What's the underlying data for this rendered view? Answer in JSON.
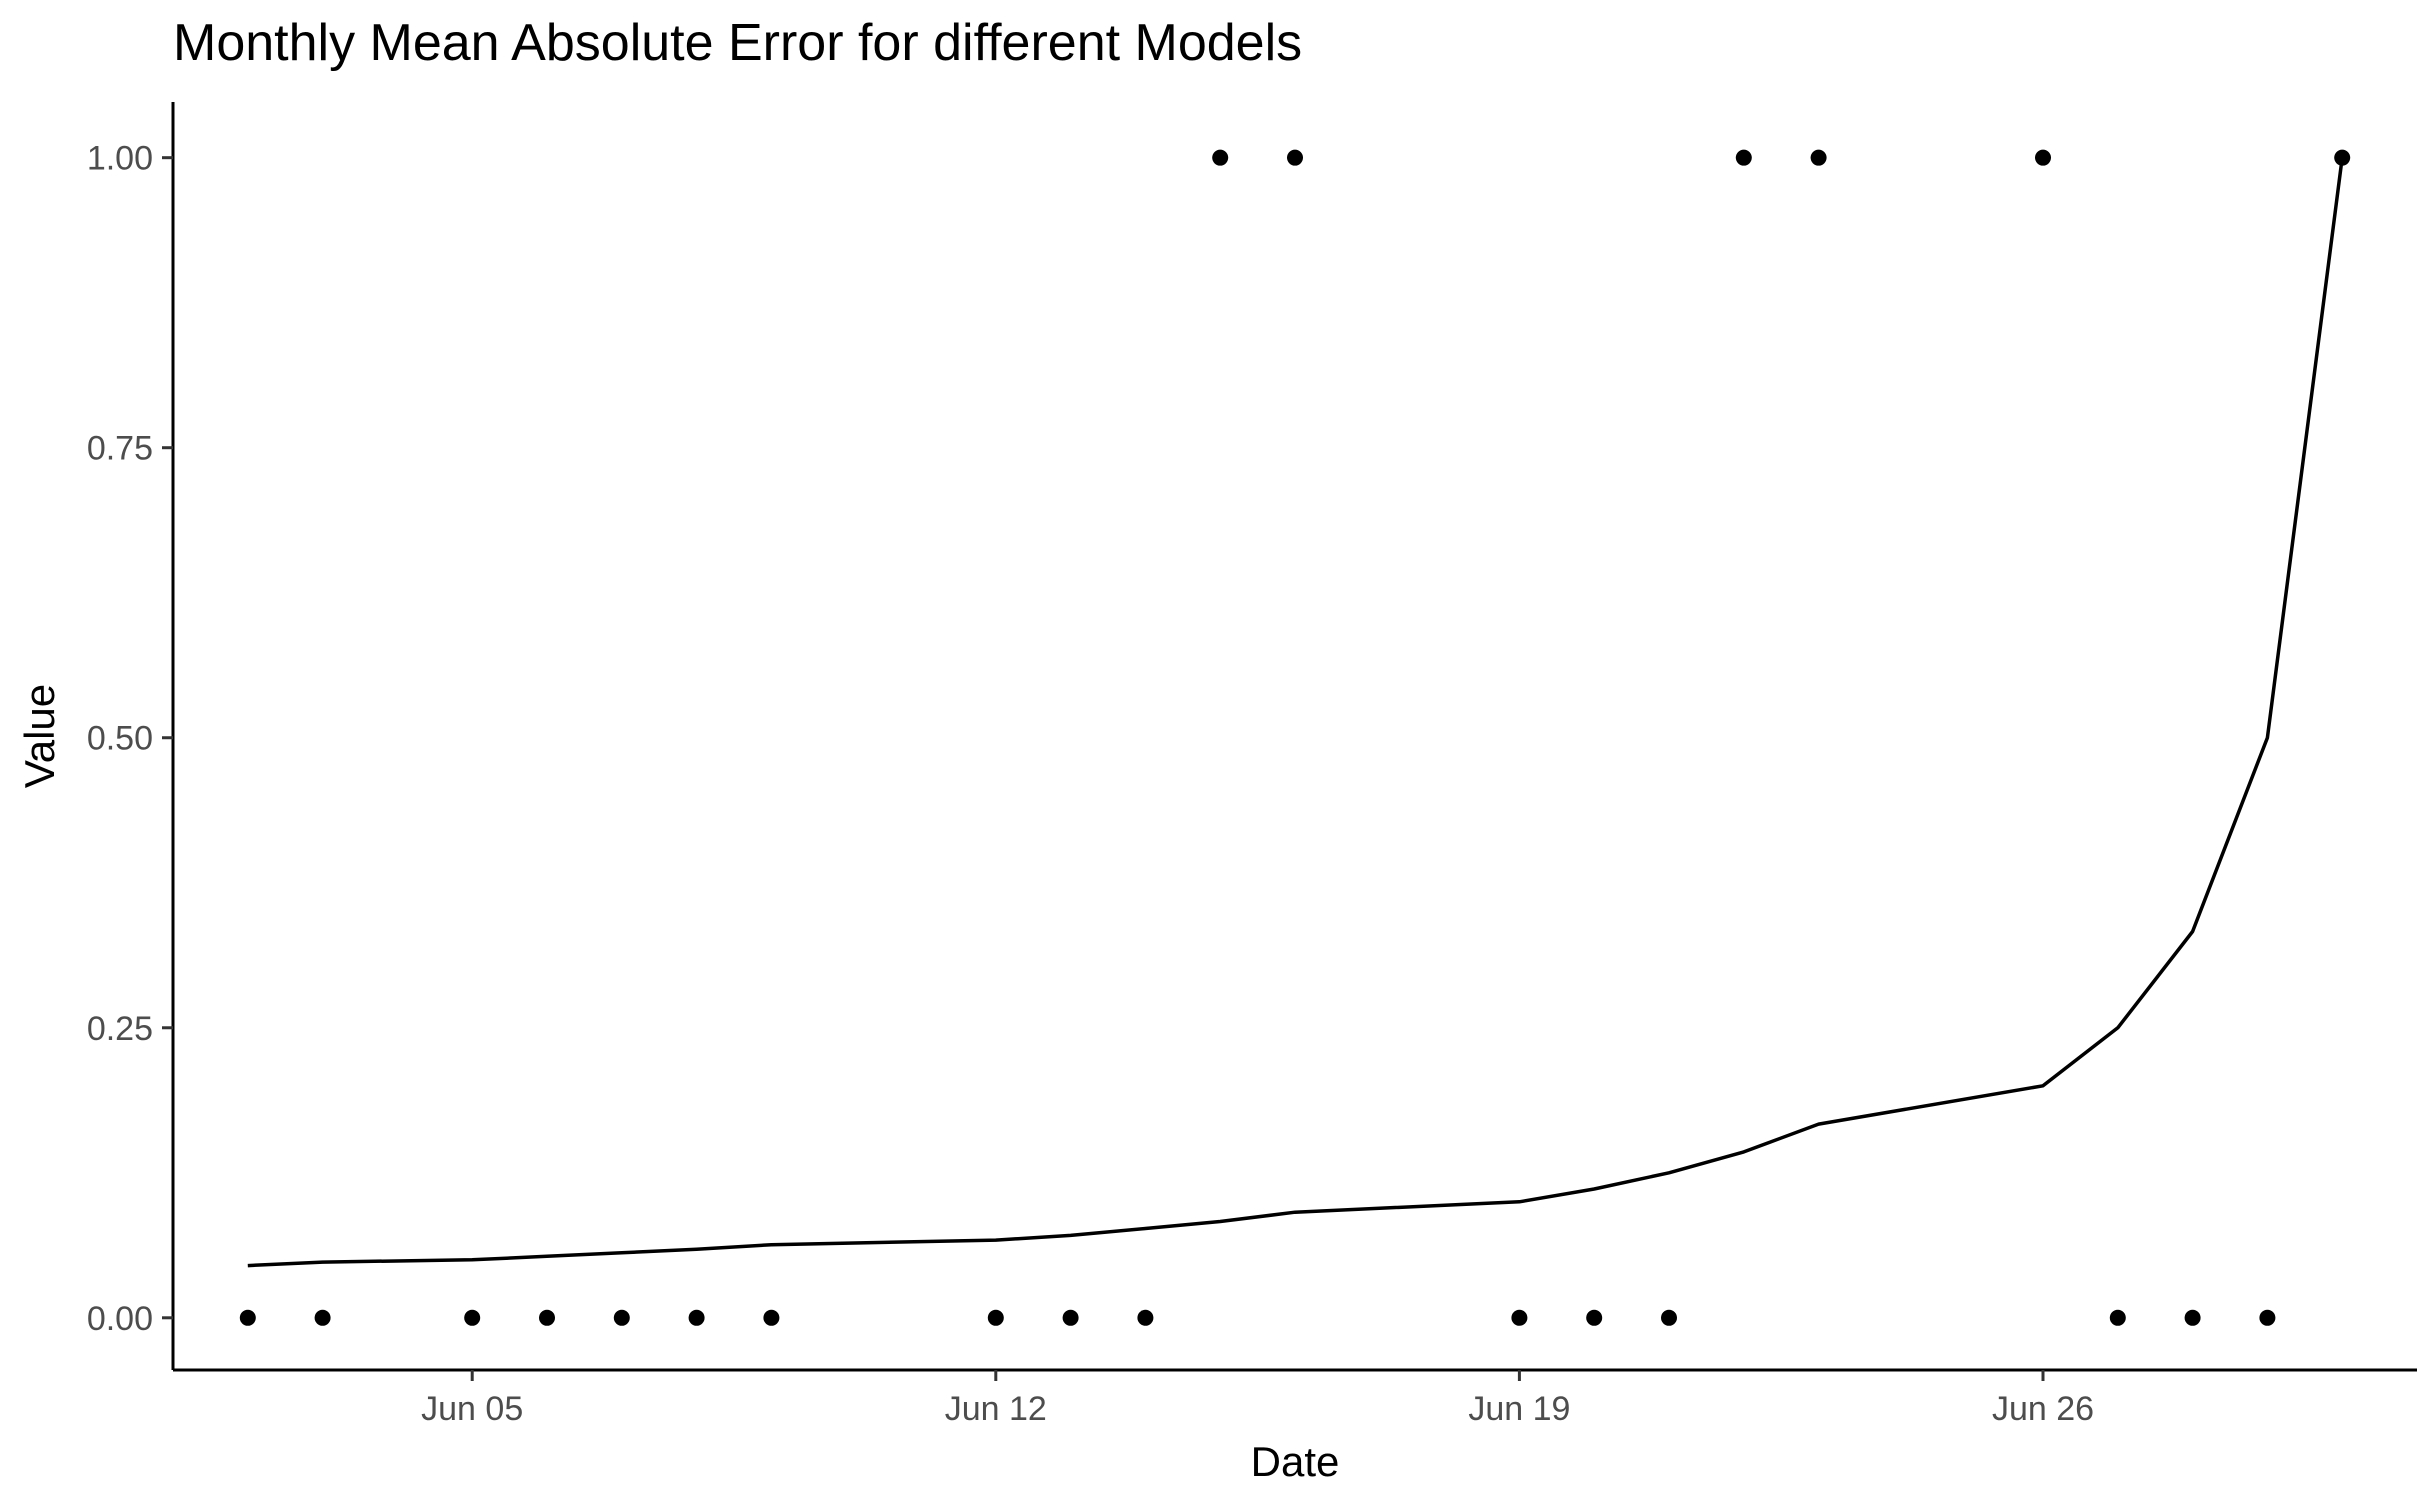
{
  "chart_data": {
    "type": "line+scatter",
    "title": "Monthly Mean Absolute Error for different Models",
    "xlabel": "Date",
    "ylabel": "Value",
    "x_range": [
      "2024-06-01",
      "2024-07-01"
    ],
    "ylim": [
      -0.045,
      1.048
    ],
    "grid": false,
    "x_ticks": [
      {
        "date": "2024-06-05",
        "label": "Jun 05"
      },
      {
        "date": "2024-06-12",
        "label": "Jun 12"
      },
      {
        "date": "2024-06-19",
        "label": "Jun 19"
      },
      {
        "date": "2024-06-26",
        "label": "Jun 26"
      }
    ],
    "y_ticks": [
      {
        "value": 0.0,
        "label": "0.00"
      },
      {
        "value": 0.25,
        "label": "0.25"
      },
      {
        "value": 0.5,
        "label": "0.50"
      },
      {
        "value": 0.75,
        "label": "0.75"
      },
      {
        "value": 1.0,
        "label": "1.00"
      }
    ],
    "points": [
      {
        "x": "2024-06-02",
        "y": 0
      },
      {
        "x": "2024-06-03",
        "y": 0
      },
      {
        "x": "2024-06-05",
        "y": 0
      },
      {
        "x": "2024-06-06",
        "y": 0
      },
      {
        "x": "2024-06-07",
        "y": 0
      },
      {
        "x": "2024-06-08",
        "y": 0
      },
      {
        "x": "2024-06-09",
        "y": 0
      },
      {
        "x": "2024-06-12",
        "y": 0
      },
      {
        "x": "2024-06-13",
        "y": 0
      },
      {
        "x": "2024-06-14",
        "y": 0
      },
      {
        "x": "2024-06-15",
        "y": 1
      },
      {
        "x": "2024-06-16",
        "y": 1
      },
      {
        "x": "2024-06-19",
        "y": 0
      },
      {
        "x": "2024-06-20",
        "y": 0
      },
      {
        "x": "2024-06-21",
        "y": 0
      },
      {
        "x": "2024-06-22",
        "y": 1
      },
      {
        "x": "2024-06-23",
        "y": 1
      },
      {
        "x": "2024-06-26",
        "y": 1
      },
      {
        "x": "2024-06-27",
        "y": 0
      },
      {
        "x": "2024-06-28",
        "y": 0
      },
      {
        "x": "2024-06-29",
        "y": 0
      },
      {
        "x": "2024-06-30",
        "y": 1
      }
    ],
    "line": [
      {
        "x": "2024-06-02",
        "y": 0.045
      },
      {
        "x": "2024-06-03",
        "y": 0.048
      },
      {
        "x": "2024-06-05",
        "y": 0.05
      },
      {
        "x": "2024-06-06",
        "y": 0.053
      },
      {
        "x": "2024-06-07",
        "y": 0.056
      },
      {
        "x": "2024-06-08",
        "y": 0.059
      },
      {
        "x": "2024-06-09",
        "y": 0.063
      },
      {
        "x": "2024-06-12",
        "y": 0.067
      },
      {
        "x": "2024-06-13",
        "y": 0.071
      },
      {
        "x": "2024-06-14",
        "y": 0.077
      },
      {
        "x": "2024-06-15",
        "y": 0.083
      },
      {
        "x": "2024-06-16",
        "y": 0.091
      },
      {
        "x": "2024-06-19",
        "y": 0.1
      },
      {
        "x": "2024-06-20",
        "y": 0.111
      },
      {
        "x": "2024-06-21",
        "y": 0.125
      },
      {
        "x": "2024-06-22",
        "y": 0.143
      },
      {
        "x": "2024-06-23",
        "y": 0.167
      },
      {
        "x": "2024-06-26",
        "y": 0.2
      },
      {
        "x": "2024-06-27",
        "y": 0.25
      },
      {
        "x": "2024-06-28",
        "y": 0.333
      },
      {
        "x": "2024-06-29",
        "y": 0.5
      },
      {
        "x": "2024-06-30",
        "y": 1.0
      }
    ],
    "colors": {
      "line": "#000000",
      "points": "#000000",
      "tick_text": "#4d4d4d"
    }
  }
}
